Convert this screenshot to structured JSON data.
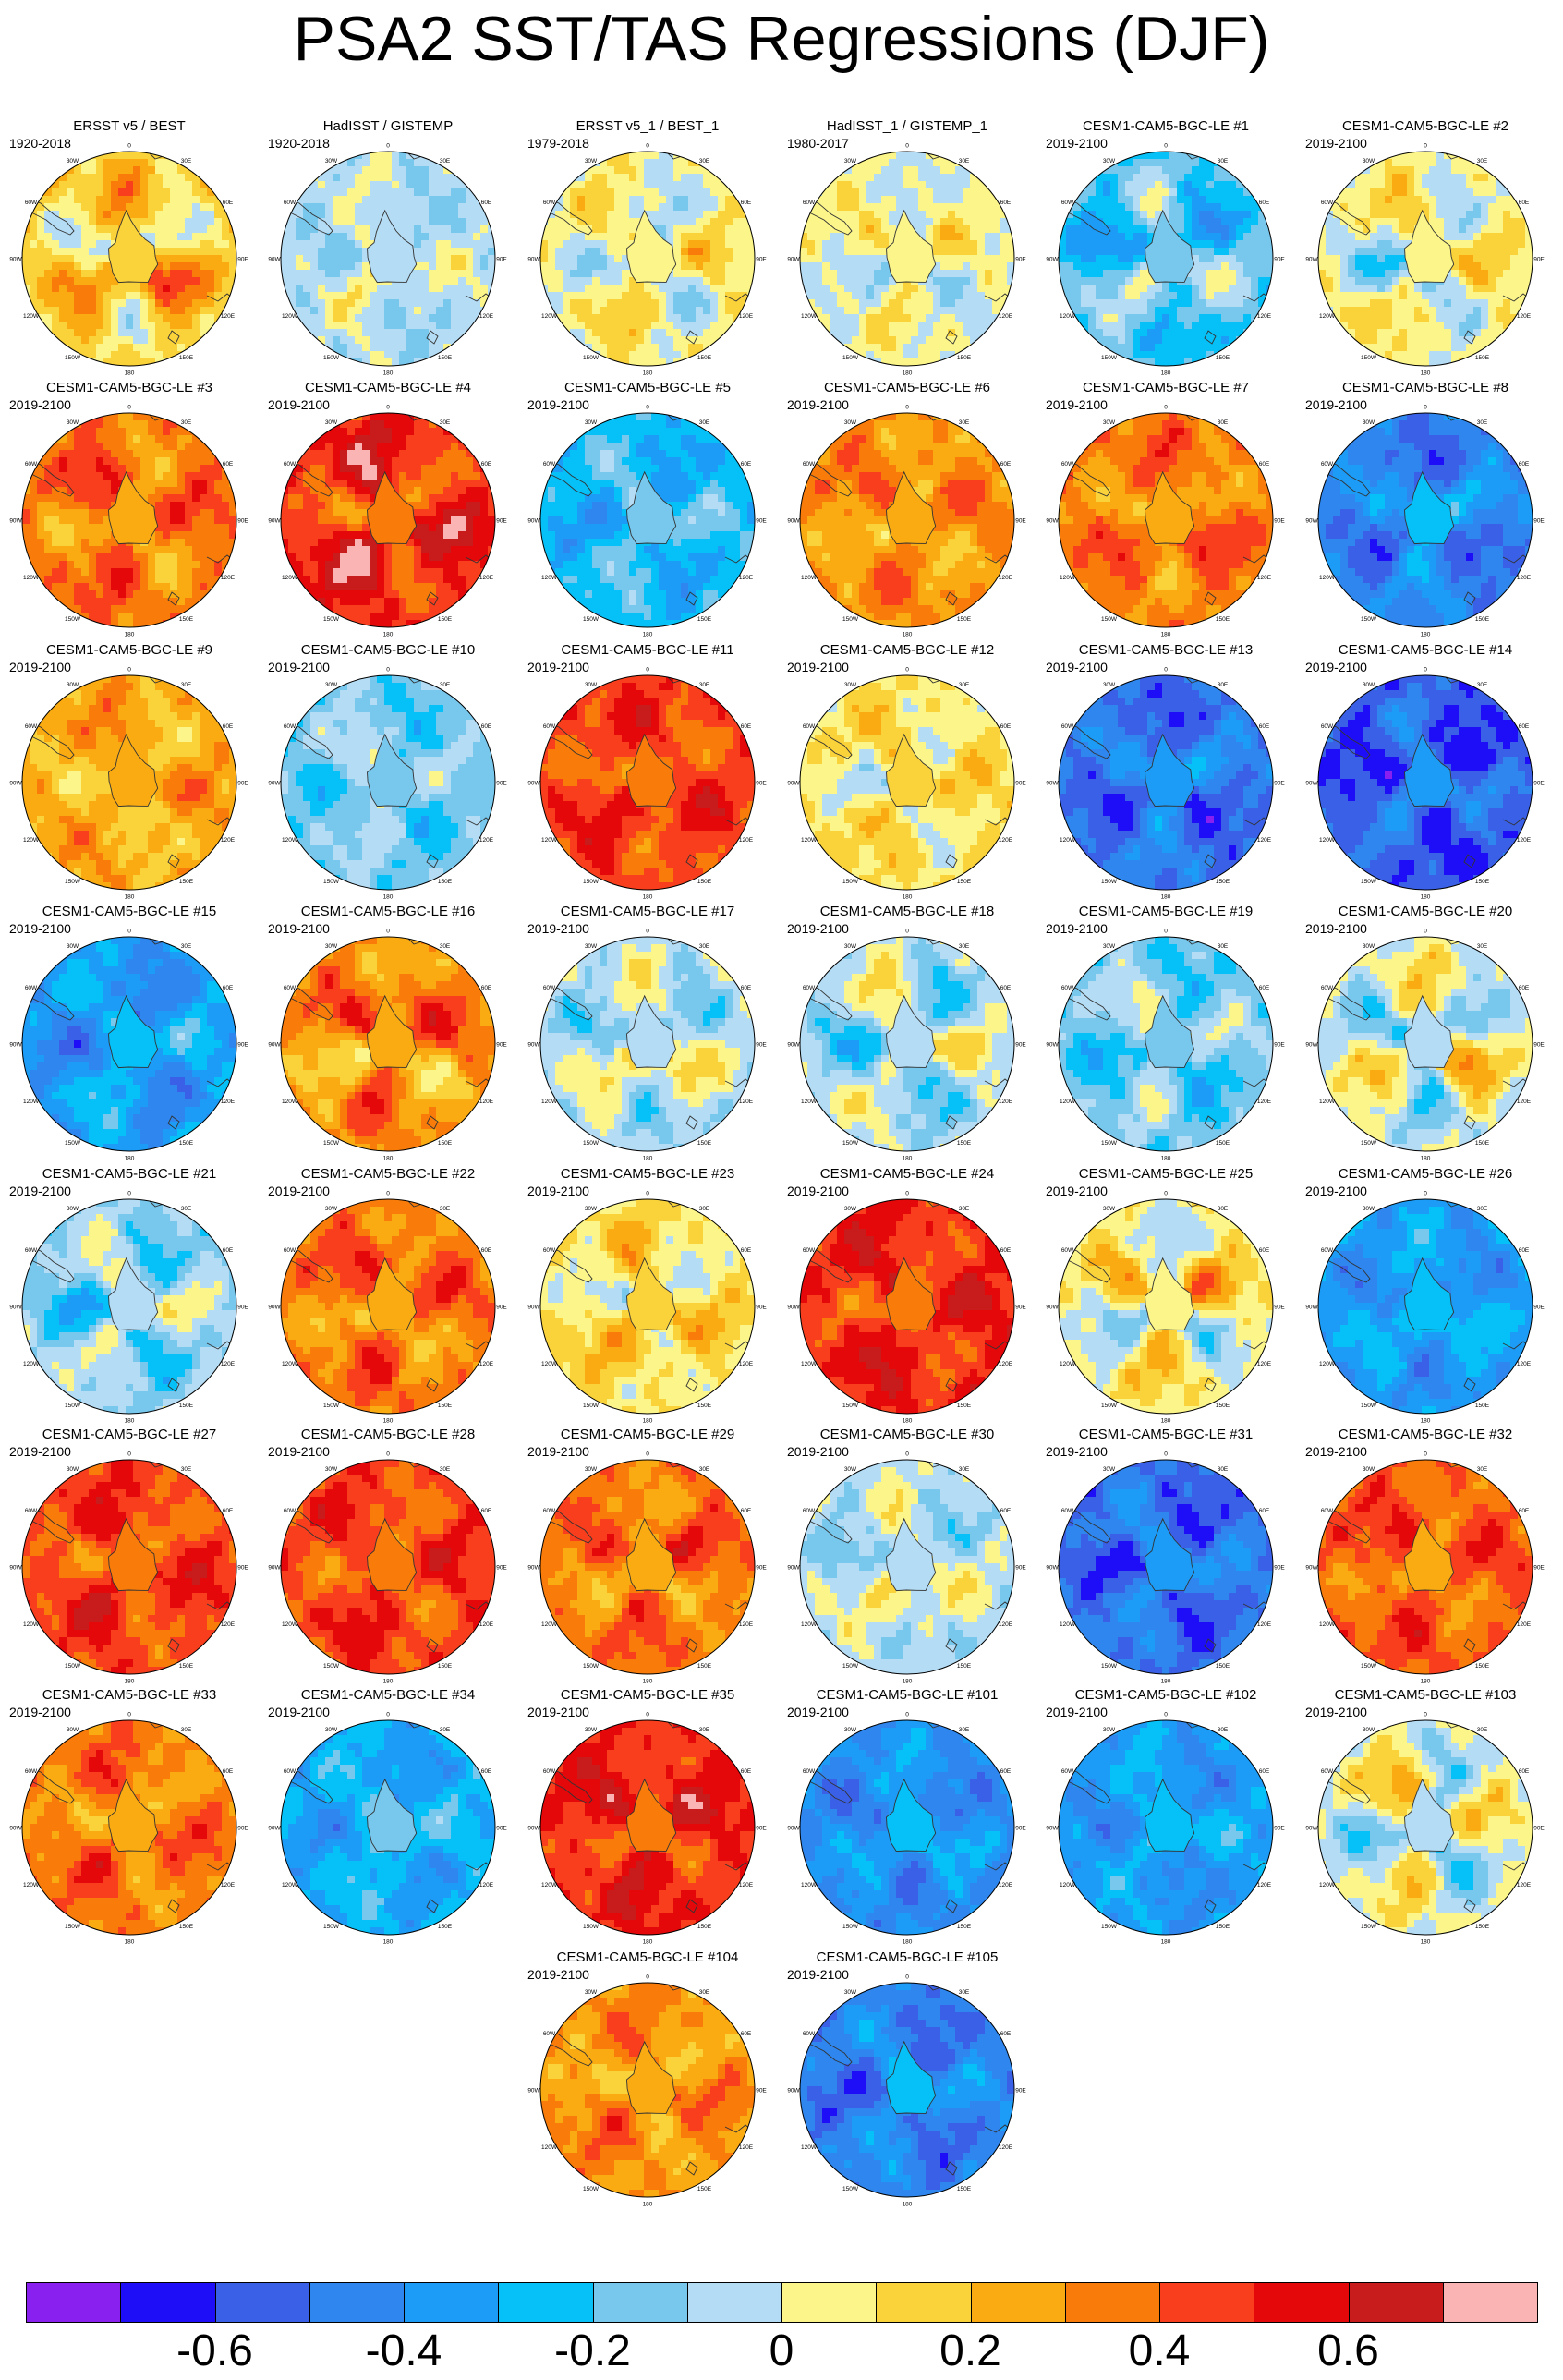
{
  "title": "PSA2 SST/TAS Regressions (DJF)",
  "colorbar": {
    "colors": [
      "#8a20f0",
      "#1e0ef8",
      "#3a60e8",
      "#2e86ee",
      "#1c9cf6",
      "#06c0f8",
      "#78c8ee",
      "#b4dcf4",
      "#fbf58a",
      "#fad23a",
      "#fbab12",
      "#f97c0a",
      "#f83e1c",
      "#e4080a",
      "#c81c1c",
      "#fab4b4"
    ],
    "tick_labels": [
      "-0.6",
      "-0.4",
      "-0.2",
      "0",
      "0.2",
      "0.4",
      "0.6"
    ],
    "tick_values": [
      -0.6,
      -0.4,
      -0.2,
      0,
      0.2,
      0.4,
      0.6
    ],
    "bin_width": 0.1,
    "min": -0.8,
    "max": 0.8
  },
  "map_labels": {
    "top": "0",
    "bottom": "180",
    "left": "90W",
    "right": "90E",
    "n30e": "30E",
    "n60e": "60E",
    "s120e": "120E",
    "s150e": "150E",
    "n30w": "30W",
    "n60w": "60W",
    "s120w": "120W",
    "s150w": "150W"
  },
  "panels": [
    {
      "title": "ERSST v5 / BEST",
      "period": "1920-2018",
      "mean": 0.15,
      "a": 0.2,
      "b": 0.5,
      "rot": 0.3
    },
    {
      "title": "HadISST / GISTEMP",
      "period": "1920-2018",
      "mean": -0.05,
      "a": 0.08,
      "b": 0.1,
      "rot": 1.1
    },
    {
      "title": "ERSST v5_1 / BEST_1",
      "period": "1979-2018",
      "mean": 0.05,
      "a": 0.15,
      "b": 0.2,
      "rot": 2.0
    },
    {
      "title": "HadISST_1 / GISTEMP_1",
      "period": "1980-2017",
      "mean": 0.02,
      "a": 0.1,
      "b": 0.15,
      "rot": 2.7
    },
    {
      "title": "CESM1-CAM5-BGC-LE #1",
      "period": "2019-2100",
      "mean": -0.2,
      "a": 0.2,
      "b": 0.4,
      "rot": 0.6
    },
    {
      "title": "CESM1-CAM5-BGC-LE #2",
      "period": "2019-2100",
      "mean": 0.05,
      "a": 0.15,
      "b": 0.5,
      "rot": 1.4
    },
    {
      "title": "CESM1-CAM5-BGC-LE #3",
      "period": "2019-2100",
      "mean": 0.35,
      "a": 0.15,
      "b": 0.2,
      "rot": 2.2
    },
    {
      "title": "CESM1-CAM5-BGC-LE #4",
      "period": "2019-2100",
      "mean": 0.5,
      "a": 0.2,
      "b": 0.3,
      "rot": 0.9
    },
    {
      "title": "CESM1-CAM5-BGC-LE #5",
      "period": "2019-2100",
      "mean": -0.25,
      "a": 0.12,
      "b": 0.1,
      "rot": 1.7
    },
    {
      "title": "CESM1-CAM5-BGC-LE #6",
      "period": "2019-2100",
      "mean": 0.3,
      "a": 0.12,
      "b": 0.15,
      "rot": 2.5
    },
    {
      "title": "CESM1-CAM5-BGC-LE #7",
      "period": "2019-2100",
      "mean": 0.35,
      "a": 0.12,
      "b": 0.15,
      "rot": 0.2
    },
    {
      "title": "CESM1-CAM5-BGC-LE #8",
      "period": "2019-2100",
      "mean": -0.45,
      "a": 0.12,
      "b": 0.1,
      "rot": 3.0
    },
    {
      "title": "CESM1-CAM5-BGC-LE #9",
      "period": "2019-2100",
      "mean": 0.25,
      "a": 0.12,
      "b": 0.2,
      "rot": 1.2
    },
    {
      "title": "CESM1-CAM5-BGC-LE #10",
      "period": "2019-2100",
      "mean": -0.15,
      "a": 0.1,
      "b": 0.15,
      "rot": 2.1
    },
    {
      "title": "CESM1-CAM5-BGC-LE #11",
      "period": "2019-2100",
      "mean": 0.45,
      "a": 0.12,
      "b": 0.15,
      "rot": 0.5
    },
    {
      "title": "CESM1-CAM5-BGC-LE #12",
      "period": "2019-2100",
      "mean": 0.1,
      "a": 0.1,
      "b": 0.2,
      "rot": 1.6
    },
    {
      "title": "CESM1-CAM5-BGC-LE #13",
      "period": "2019-2100",
      "mean": -0.5,
      "a": 0.12,
      "b": 0.1,
      "rot": 2.9
    },
    {
      "title": "CESM1-CAM5-BGC-LE #14",
      "period": "2019-2100",
      "mean": -0.55,
      "a": 0.12,
      "b": 0.1,
      "rot": 0.8
    },
    {
      "title": "CESM1-CAM5-BGC-LE #15",
      "period": "2019-2100",
      "mean": -0.35,
      "a": 0.15,
      "b": 0.2,
      "rot": 1.9
    },
    {
      "title": "CESM1-CAM5-BGC-LE #16",
      "period": "2019-2100",
      "mean": 0.3,
      "a": 0.2,
      "b": 0.5,
      "rot": 2.6
    },
    {
      "title": "CESM1-CAM5-BGC-LE #17",
      "period": "2019-2100",
      "mean": -0.05,
      "a": 0.15,
      "b": 0.3,
      "rot": 0.4
    },
    {
      "title": "CESM1-CAM5-BGC-LE #18",
      "period": "2019-2100",
      "mean": -0.05,
      "a": 0.2,
      "b": 0.4,
      "rot": 1.3
    },
    {
      "title": "CESM1-CAM5-BGC-LE #19",
      "period": "2019-2100",
      "mean": -0.15,
      "a": 0.15,
      "b": 0.3,
      "rot": 2.3
    },
    {
      "title": "CESM1-CAM5-BGC-LE #20",
      "period": "2019-2100",
      "mean": 0.0,
      "a": 0.2,
      "b": 0.4,
      "rot": 0.1
    },
    {
      "title": "CESM1-CAM5-BGC-LE #21",
      "period": "2019-2100",
      "mean": -0.1,
      "a": 0.15,
      "b": 0.3,
      "rot": 1.5
    },
    {
      "title": "CESM1-CAM5-BGC-LE #22",
      "period": "2019-2100",
      "mean": 0.35,
      "a": 0.15,
      "b": 0.3,
      "rot": 2.4
    },
    {
      "title": "CESM1-CAM5-BGC-LE #23",
      "period": "2019-2100",
      "mean": 0.1,
      "a": 0.15,
      "b": 0.3,
      "rot": 0.7
    },
    {
      "title": "CESM1-CAM5-BGC-LE #24",
      "period": "2019-2100",
      "mean": 0.5,
      "a": 0.12,
      "b": 0.15,
      "rot": 1.8
    },
    {
      "title": "CESM1-CAM5-BGC-LE #25",
      "period": "2019-2100",
      "mean": 0.05,
      "a": 0.2,
      "b": 0.4,
      "rot": 2.8
    },
    {
      "title": "CESM1-CAM5-BGC-LE #26",
      "period": "2019-2100",
      "mean": -0.35,
      "a": 0.1,
      "b": 0.1,
      "rot": 0.3
    },
    {
      "title": "CESM1-CAM5-BGC-LE #27",
      "period": "2019-2100",
      "mean": 0.45,
      "a": 0.12,
      "b": 0.15,
      "rot": 1.0
    },
    {
      "title": "CESM1-CAM5-BGC-LE #28",
      "period": "2019-2100",
      "mean": 0.45,
      "a": 0.12,
      "b": 0.15,
      "rot": 2.0
    },
    {
      "title": "CESM1-CAM5-BGC-LE #29",
      "period": "2019-2100",
      "mean": 0.35,
      "a": 0.12,
      "b": 0.2,
      "rot": 2.9
    },
    {
      "title": "CESM1-CAM5-BGC-LE #30",
      "period": "2019-2100",
      "mean": -0.05,
      "a": 0.12,
      "b": 0.3,
      "rot": 0.6
    },
    {
      "title": "CESM1-CAM5-BGC-LE #31",
      "period": "2019-2100",
      "mean": -0.5,
      "a": 0.12,
      "b": 0.1,
      "rot": 1.6
    },
    {
      "title": "CESM1-CAM5-BGC-LE #32",
      "period": "2019-2100",
      "mean": 0.4,
      "a": 0.12,
      "b": 0.15,
      "rot": 2.4
    },
    {
      "title": "CESM1-CAM5-BGC-LE #33",
      "period": "2019-2100",
      "mean": 0.35,
      "a": 0.12,
      "b": 0.15,
      "rot": 0.9
    },
    {
      "title": "CESM1-CAM5-BGC-LE #34",
      "period": "2019-2100",
      "mean": -0.3,
      "a": 0.1,
      "b": 0.1,
      "rot": 1.9
    },
    {
      "title": "CESM1-CAM5-BGC-LE #35",
      "period": "2019-2100",
      "mean": 0.5,
      "a": 0.12,
      "b": 0.15,
      "rot": 2.7
    },
    {
      "title": "CESM1-CAM5-BGC-LE #101",
      "period": "2019-2100",
      "mean": -0.4,
      "a": 0.1,
      "b": 0.1,
      "rot": 0.2
    },
    {
      "title": "CESM1-CAM5-BGC-LE #102",
      "period": "2019-2100",
      "mean": -0.35,
      "a": 0.1,
      "b": 0.1,
      "rot": 1.2
    },
    {
      "title": "CESM1-CAM5-BGC-LE #103",
      "period": "2019-2100",
      "mean": 0.0,
      "a": 0.2,
      "b": 0.4,
      "rot": 2.2
    },
    {
      "title": "CESM1-CAM5-BGC-LE #104",
      "period": "2019-2100",
      "mean": 0.3,
      "a": 0.12,
      "b": 0.15,
      "rot": 0.8
    },
    {
      "title": "CESM1-CAM5-BGC-LE #105",
      "period": "2019-2100",
      "mean": -0.45,
      "a": 0.12,
      "b": 0.1,
      "rot": 1.7
    }
  ]
}
